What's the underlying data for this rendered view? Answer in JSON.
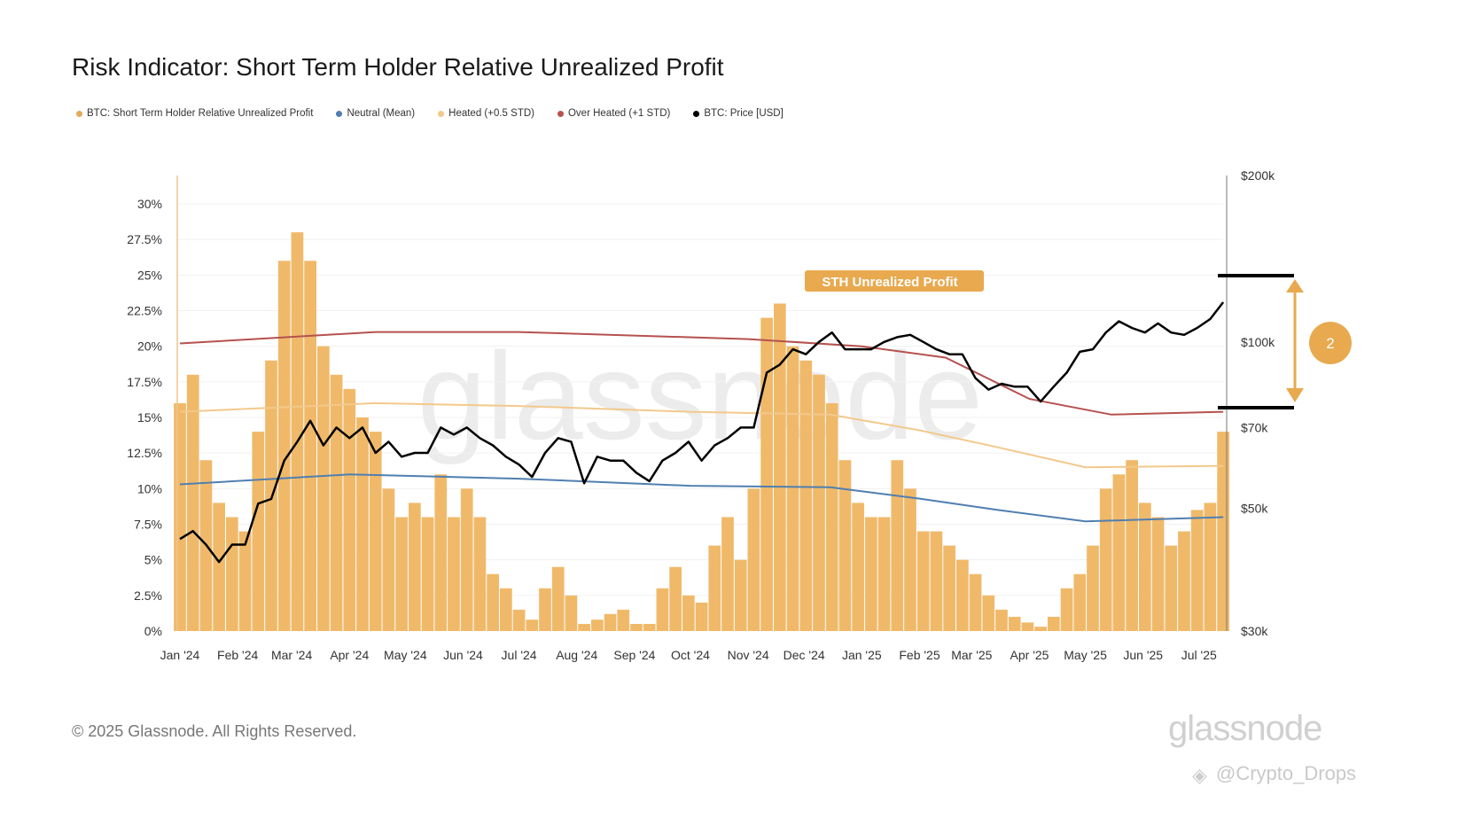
{
  "title": "Risk Indicator: Short Term Holder Relative Unrealized Profit",
  "legend": [
    {
      "label": "BTC: Short Term Holder Relative Unrealized Profit",
      "color": "#e3a95a"
    },
    {
      "label": "Neutral (Mean)",
      "color": "#4f7fb0"
    },
    {
      "label": "Heated (+0.5 STD)",
      "color": "#f2c98c"
    },
    {
      "label": "Over Heated (+1 STD)",
      "color": "#b5514f"
    },
    {
      "label": "BTC: Price [USD]",
      "color": "#000000"
    }
  ],
  "watermark": "glassnode",
  "footer": "© 2025 Glassnode. All Rights Reserved.",
  "logo": "glassnode",
  "source_watermark": "@Crypto_Drops",
  "annotations": {
    "label": "STH Unrealized Profit",
    "badge": "2",
    "accent": "#e8a94f"
  },
  "chart_data": {
    "type": "bar",
    "xlabel": "",
    "ylabel": "",
    "x_ticks": [
      "Jan '24",
      "Feb '24",
      "Mar '24",
      "Apr '24",
      "May '24",
      "Jun '24",
      "Jul '24",
      "Aug '24",
      "Sep '24",
      "Oct '24",
      "Nov '24",
      "Dec '24",
      "Jan '25",
      "Feb '25",
      "Mar '25",
      "Apr '25",
      "May '25",
      "Jun '25",
      "Jul '25"
    ],
    "x_tick_dates": [
      "2024-01-01",
      "2024-02-01",
      "2024-03-01",
      "2024-04-01",
      "2024-05-01",
      "2024-06-01",
      "2024-07-01",
      "2024-08-01",
      "2024-09-01",
      "2024-10-01",
      "2024-11-01",
      "2024-12-01",
      "2025-01-01",
      "2025-02-01",
      "2025-03-01",
      "2025-04-01",
      "2025-05-01",
      "2025-06-01",
      "2025-07-01"
    ],
    "y_left": {
      "ticks": [
        "0%",
        "2.5%",
        "5%",
        "7.5%",
        "10%",
        "12.5%",
        "15%",
        "17.5%",
        "20%",
        "22.5%",
        "25%",
        "27.5%",
        "30%"
      ],
      "range": [
        0,
        30
      ],
      "scale": "linear"
    },
    "y_right": {
      "ticks": [
        "$30k",
        "$50k",
        "$70k",
        "$100k",
        "$200k"
      ],
      "tick_values": [
        30000,
        50000,
        70000,
        100000,
        200000
      ],
      "range": [
        30000,
        200000
      ],
      "scale": "log"
    },
    "grid": true,
    "legend_position": "top-left",
    "dates": [
      "2024-01-01",
      "2024-01-08",
      "2024-01-15",
      "2024-01-22",
      "2024-01-29",
      "2024-02-05",
      "2024-02-12",
      "2024-02-19",
      "2024-02-26",
      "2024-03-04",
      "2024-03-11",
      "2024-03-18",
      "2024-03-25",
      "2024-04-01",
      "2024-04-08",
      "2024-04-15",
      "2024-04-22",
      "2024-04-29",
      "2024-05-06",
      "2024-05-13",
      "2024-05-20",
      "2024-05-27",
      "2024-06-03",
      "2024-06-10",
      "2024-06-17",
      "2024-06-24",
      "2024-07-01",
      "2024-07-08",
      "2024-07-15",
      "2024-07-22",
      "2024-07-29",
      "2024-08-05",
      "2024-08-12",
      "2024-08-19",
      "2024-08-26",
      "2024-09-02",
      "2024-09-09",
      "2024-09-16",
      "2024-09-23",
      "2024-09-30",
      "2024-10-07",
      "2024-10-14",
      "2024-10-21",
      "2024-10-28",
      "2024-11-04",
      "2024-11-11",
      "2024-11-18",
      "2024-11-25",
      "2024-12-02",
      "2024-12-09",
      "2024-12-16",
      "2024-12-23",
      "2024-12-30",
      "2025-01-06",
      "2025-01-13",
      "2025-01-20",
      "2025-01-27",
      "2025-02-03",
      "2025-02-10",
      "2025-02-17",
      "2025-02-24",
      "2025-03-03",
      "2025-03-10",
      "2025-03-17",
      "2025-03-24",
      "2025-03-31",
      "2025-04-07",
      "2025-04-14",
      "2025-04-21",
      "2025-04-28",
      "2025-05-05",
      "2025-05-12",
      "2025-05-19",
      "2025-05-26",
      "2025-06-02",
      "2025-06-09",
      "2025-06-16",
      "2025-06-23",
      "2025-06-30",
      "2025-07-07",
      "2025-07-14"
    ],
    "series": [
      {
        "name": "BTC: Short Term Holder Relative Unrealized Profit",
        "kind": "bar",
        "axis": "left",
        "color": "#f0b96a",
        "values": [
          16,
          18,
          12,
          9,
          8,
          7,
          14,
          19,
          26,
          28,
          26,
          20,
          18,
          17,
          15,
          14,
          10,
          8,
          9,
          8,
          11,
          8,
          10,
          8,
          4,
          3,
          1.5,
          0.8,
          3,
          4.5,
          2.5,
          0.5,
          0.8,
          1.2,
          1.5,
          0.5,
          0.5,
          3,
          4.5,
          2.5,
          2,
          6,
          8,
          5,
          10,
          22,
          23,
          20,
          19,
          18,
          16,
          12,
          9,
          8,
          8,
          12,
          10,
          7,
          7,
          6,
          5,
          4,
          2.5,
          1.5,
          1,
          0.6,
          0.3,
          1,
          3,
          4,
          6,
          10,
          11,
          12,
          9,
          8,
          6,
          7,
          8.5,
          9,
          14
        ]
      },
      {
        "name": "BTC: Price [USD]",
        "kind": "line",
        "axis": "right",
        "color": "#000000",
        "values": [
          44000,
          45500,
          43000,
          40000,
          43000,
          43000,
          51000,
          52000,
          61000,
          66000,
          72000,
          65000,
          70000,
          67000,
          70000,
          63000,
          66000,
          62000,
          63000,
          63000,
          70000,
          68000,
          70000,
          67000,
          65000,
          62000,
          60000,
          57000,
          63000,
          67000,
          66000,
          55500,
          62000,
          61000,
          61000,
          58000,
          56000,
          61000,
          63000,
          66000,
          61000,
          65000,
          67000,
          70000,
          70000,
          88000,
          91000,
          97000,
          95000,
          100000,
          104000,
          97000,
          97000,
          97000,
          100000,
          102000,
          103000,
          100000,
          97000,
          95000,
          95000,
          86000,
          82000,
          84000,
          83000,
          83000,
          78000,
          83000,
          88000,
          96000,
          97000,
          104000,
          109000,
          106000,
          104000,
          108000,
          104000,
          103000,
          106000,
          110000,
          118000
        ]
      },
      {
        "name": "Neutral (Mean)",
        "kind": "line",
        "axis": "left",
        "color": "#4f7fb0",
        "points": [
          [
            "2024-01-01",
            10.3
          ],
          [
            "2024-04-01",
            11.0
          ],
          [
            "2024-07-01",
            10.7
          ],
          [
            "2024-10-01",
            10.2
          ],
          [
            "2024-12-15",
            10.1
          ],
          [
            "2025-02-01",
            9.3
          ],
          [
            "2025-03-15",
            8.5
          ],
          [
            "2025-05-01",
            7.7
          ],
          [
            "2025-07-14",
            8.0
          ]
        ]
      },
      {
        "name": "Heated (+0.5 STD)",
        "kind": "line",
        "axis": "left",
        "color": "#f2c98c",
        "points": [
          [
            "2024-01-01",
            15.4
          ],
          [
            "2024-04-15",
            16.0
          ],
          [
            "2024-07-01",
            15.8
          ],
          [
            "2024-10-01",
            15.4
          ],
          [
            "2024-12-15",
            15.2
          ],
          [
            "2025-02-01",
            14.1
          ],
          [
            "2025-03-15",
            12.9
          ],
          [
            "2025-05-01",
            11.5
          ],
          [
            "2025-07-14",
            11.6
          ]
        ]
      },
      {
        "name": "Over Heated (+1 STD)",
        "kind": "line",
        "axis": "left",
        "color": "#b5514f",
        "points": [
          [
            "2024-01-01",
            20.2
          ],
          [
            "2024-04-15",
            21.0
          ],
          [
            "2024-07-01",
            21.0
          ],
          [
            "2024-11-01",
            20.5
          ],
          [
            "2025-01-01",
            20.0
          ],
          [
            "2025-02-15",
            19.2
          ],
          [
            "2025-04-01",
            16.3
          ],
          [
            "2025-05-15",
            15.2
          ],
          [
            "2025-07-14",
            15.4
          ]
        ]
      }
    ]
  }
}
